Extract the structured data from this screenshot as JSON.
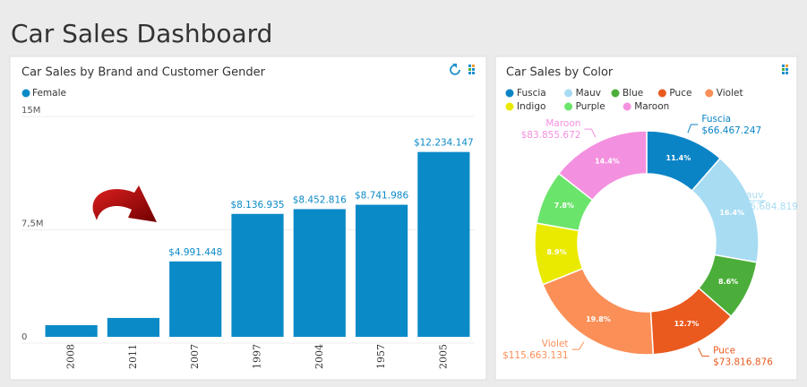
{
  "title": "Car Sales Dashboard",
  "chart_data": [
    {
      "type": "bar",
      "title": "Car Sales by Brand and Customer Gender",
      "categories": [
        "2008",
        "2011",
        "2007",
        "1997",
        "2004",
        "1957",
        "2005"
      ],
      "series": [
        {
          "name": "Female",
          "color": "#0b8ac8",
          "values": [
            770000,
            1250000,
            4991448,
            8136935,
            8452816,
            8741986,
            12234147
          ],
          "value_labels": [
            null,
            null,
            "$4.991.448",
            "$8.136.935",
            "$8.452.816",
            "$8.741.986",
            "$12.234.147"
          ]
        }
      ],
      "ylim": [
        0,
        15000000
      ],
      "yticks": [
        0,
        {
          "value": 7500000,
          "label": "7,5M"
        },
        {
          "value": 15000000,
          "label": "15M"
        }
      ],
      "grid": true,
      "legend": "top-left"
    },
    {
      "type": "pie",
      "title": "Car Sales by Color",
      "donut": true,
      "categories": [
        "Fuscia",
        "Mauv",
        "Blue",
        "Puce",
        "Violet",
        "Indigo",
        "Purple",
        "Maroon"
      ],
      "values": [
        66467247,
        95684819,
        50200000,
        73816876,
        115663131,
        52000000,
        45500000,
        83855672
      ],
      "value_labels": [
        "$66.467.247",
        "$95.684.819",
        null,
        "$73.816.876",
        "$115.663.131",
        null,
        null,
        "$83.855.672"
      ],
      "percent_labels": [
        "11.4%",
        "16.4%",
        "8.6%",
        "12.7%",
        "19.8%",
        "8.9%",
        "7.8%",
        "14.4%"
      ],
      "colors": [
        "#0b84c6",
        "#a8dcf3",
        "#4cae3a",
        "#ea5a1e",
        "#fb8f58",
        "#eaea00",
        "#6be46b",
        "#f490e0"
      ],
      "legend": "top-left"
    }
  ]
}
